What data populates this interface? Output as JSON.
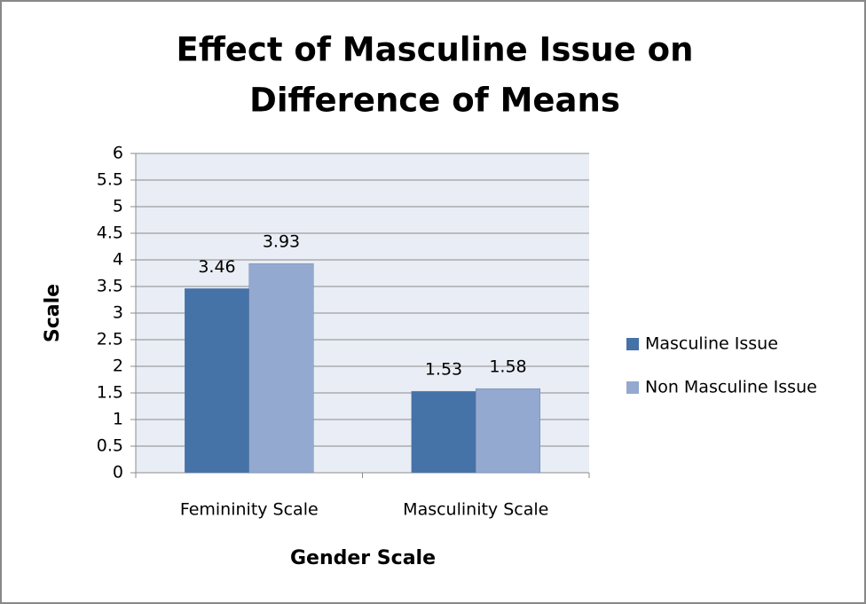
{
  "chart_data": {
    "type": "bar",
    "title": [
      "Effect of Masculine Issue on",
      "Difference of Means"
    ],
    "x_label": "Gender Scale",
    "y_label": "Scale",
    "categories": [
      "Femininity Scale",
      "Masculinity Scale"
    ],
    "series": [
      {
        "name": "Masculine Issue",
        "color": "#4572a7",
        "values": [
          3.46,
          1.53
        ]
      },
      {
        "name": "Non Masculine Issue",
        "color": "#93a9cf",
        "values": [
          3.93,
          1.58
        ]
      }
    ],
    "ylim": [
      0,
      6
    ],
    "yticks": [
      0,
      0.5,
      1,
      1.5,
      2,
      2.5,
      3,
      3.5,
      4,
      4.5,
      5,
      5.5,
      6
    ],
    "grid": true,
    "legend": "right"
  }
}
